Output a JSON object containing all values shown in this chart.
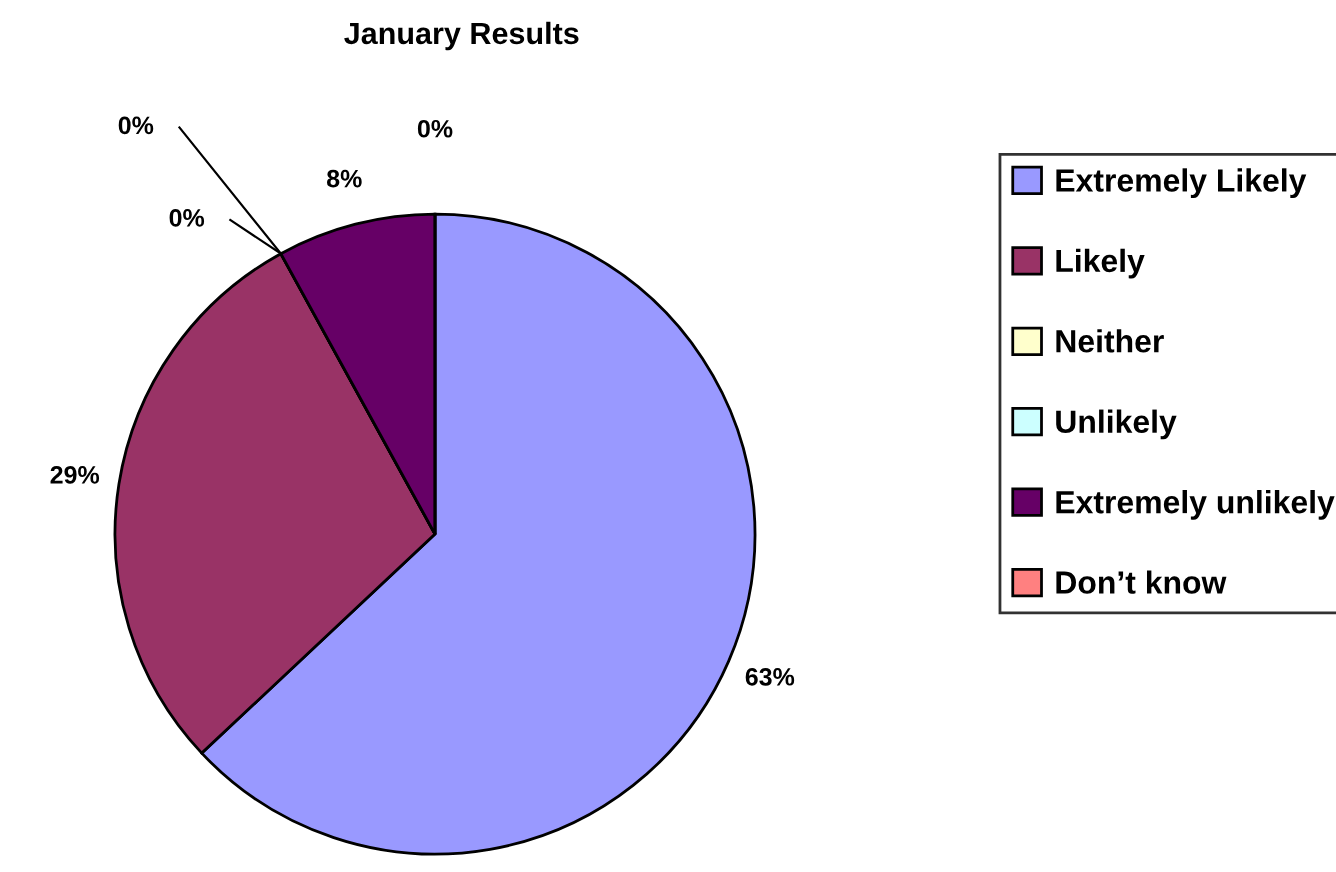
{
  "chart_data": {
    "type": "pie",
    "title": "January Results",
    "categories": [
      "Extremely Likely",
      "Likely",
      "Neither",
      "Unlikely",
      "Extremely unlikely",
      "Don’t know"
    ],
    "values": [
      63,
      29,
      0,
      0,
      8,
      0
    ],
    "colors": [
      "#9999ff",
      "#993366",
      "#ffffcc",
      "#ccffff",
      "#660066",
      "#ff8080"
    ],
    "value_labels": [
      "63%",
      "29%",
      "0%",
      "0%",
      "8%",
      "0%"
    ],
    "legend": "right"
  }
}
